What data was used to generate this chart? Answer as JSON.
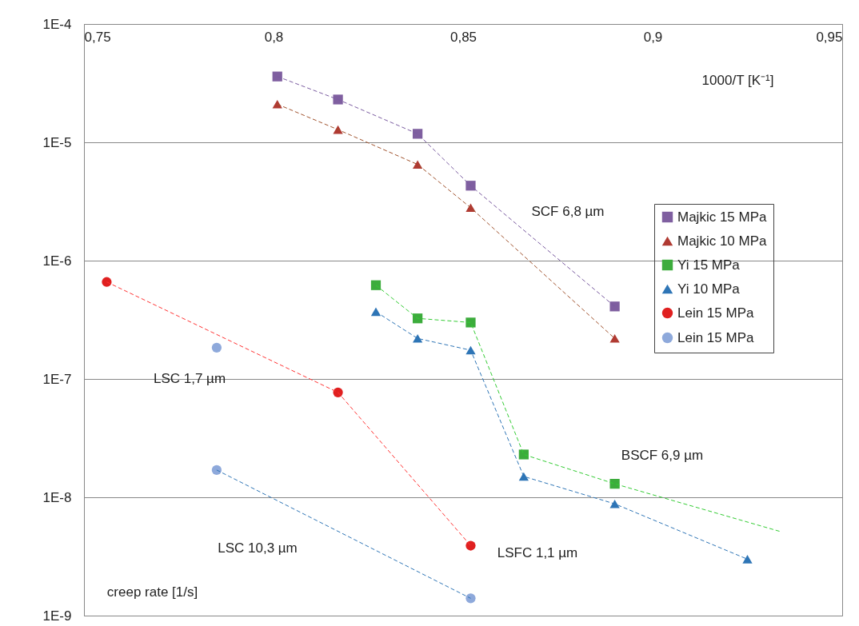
{
  "chart_data": {
    "type": "scatter",
    "xlabel": "1000/T  [K⁻¹]",
    "ylabel": "creep rate   [1/s]",
    "log": "y",
    "grid": "y",
    "legend": "right",
    "xlim": [
      0.75,
      0.95
    ],
    "xticks": [
      {
        "value": 0.75,
        "label": "0,75"
      },
      {
        "value": 0.8,
        "label": "0,8"
      },
      {
        "value": 0.85,
        "label": "0,85"
      },
      {
        "value": 0.9,
        "label": "0,9"
      },
      {
        "value": 0.95,
        "label": "0,95"
      }
    ],
    "ylim": [
      1e-09,
      0.0001
    ],
    "yticks": [
      {
        "value": 1e-09,
        "label": "1E-9"
      },
      {
        "value": 1e-08,
        "label": "1E-8"
      },
      {
        "value": 1e-07,
        "label": "1E-7"
      },
      {
        "value": 1e-06,
        "label": "1E-6"
      },
      {
        "value": 1e-05,
        "label": "1E-5"
      },
      {
        "value": 0.0001,
        "label": "1E-4"
      }
    ],
    "series": [
      {
        "name": "Majkic 15 MPa",
        "color": "#7f5fa0",
        "marker": "square",
        "x": [
          0.801,
          0.817,
          0.838,
          0.852,
          0.89
        ],
        "values": [
          3.6e-05,
          2.3e-05,
          1.18e-05,
          4.3e-06,
          4.1e-07
        ]
      },
      {
        "name": "Majkic 10 MPa",
        "color": "#b03a32",
        "marker": "triangle",
        "x": [
          0.801,
          0.817,
          0.838,
          0.852,
          0.89
        ],
        "values": [
          2.1e-05,
          1.28e-05,
          6.5e-06,
          2.8e-06,
          2.2e-07
        ]
      },
      {
        "name": "Yi 15 MPa",
        "color": "#3cac3c",
        "marker": "square",
        "x": [
          0.827,
          0.838,
          0.852,
          0.866,
          0.89
        ],
        "values": [
          6.2e-07,
          3.25e-07,
          3e-07,
          2.3e-08,
          1.3e-08
        ]
      },
      {
        "name": "Yi 10 MPa",
        "color": "#2e75b6",
        "marker": "triangle",
        "x": [
          0.827,
          0.838,
          0.852,
          0.866,
          0.89,
          0.925
        ],
        "values": [
          3.7e-07,
          2.2e-07,
          1.75e-07,
          1.5e-08,
          8.8e-09,
          3e-09
        ]
      },
      {
        "name": "Lein 15 MPa",
        "color": "#e02020",
        "marker": "circle",
        "x": [
          0.756,
          0.817,
          0.852
        ],
        "values": [
          6.6e-07,
          7.7e-08,
          3.9e-09
        ]
      },
      {
        "name": "Lein 15 MPa",
        "color": "#8ea9db",
        "marker": "circle",
        "x": [
          0.785,
          0.785,
          0.852
        ],
        "values": [
          1.84e-07,
          1.7e-08,
          1.4e-09
        ]
      },
      {
        "type": "line",
        "color": "#7a5ba0",
        "line_style": "dashed",
        "x": [
          0.801,
          0.817,
          0.838,
          0.852,
          0.89
        ],
        "values": [
          3.6e-05,
          2.3e-05,
          1.18e-05,
          4.3e-06,
          4.1e-07
        ]
      },
      {
        "type": "line",
        "color": "#a0522d",
        "line_style": "dashed",
        "x": [
          0.801,
          0.817,
          0.838,
          0.852,
          0.89
        ],
        "values": [
          2.1e-05,
          1.28e-05,
          6.5e-06,
          2.8e-06,
          2.2e-07
        ]
      },
      {
        "type": "line",
        "color": "#33cc33",
        "line_style": "dashed",
        "x": [
          0.827,
          0.838,
          0.852,
          0.866,
          0.89,
          0.934
        ],
        "values": [
          6.2e-07,
          3.25e-07,
          3e-07,
          2.3e-08,
          1.3e-08,
          5.1e-09
        ]
      },
      {
        "type": "line",
        "color": "#2e75b6",
        "line_style": "dashed",
        "x": [
          0.827,
          0.838,
          0.852,
          0.866,
          0.89,
          0.925
        ],
        "values": [
          3.7e-07,
          2.2e-07,
          1.75e-07,
          1.5e-08,
          8.8e-09,
          3e-09
        ]
      },
      {
        "type": "line",
        "color": "#ff3333",
        "line_style": "dashed",
        "x": [
          0.756,
          0.817,
          0.852
        ],
        "values": [
          6.6e-07,
          7.7e-08,
          3.9e-09
        ]
      },
      {
        "type": "line",
        "color": "#2e75b6",
        "line_style": "dashed",
        "x": [
          0.785,
          0.852
        ],
        "values": [
          1.7e-08,
          1.4e-09
        ]
      }
    ],
    "annotations": [
      "SCF 6,8 µm",
      "LSC 1,7 µm",
      "BSCF 6,9 µm",
      "LSC 10,3 µm",
      "LSFC 1,1 µm"
    ]
  }
}
